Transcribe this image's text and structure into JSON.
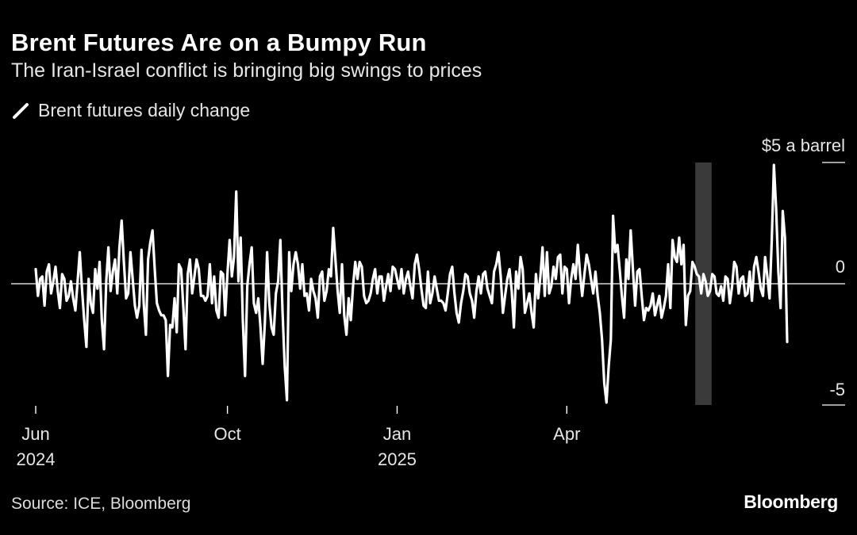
{
  "title": "Brent Futures Are on a Bumpy Run",
  "subtitle": "The Iran-Israel conflict is bringing big swings to prices",
  "source": "Source: ICE, Bloomberg",
  "brand": "Bloomberg",
  "colors": {
    "background": "#000000",
    "line": "#ffffff",
    "highlight": "#3a3a3a",
    "zero_line": "#ffffff"
  },
  "chart_data": {
    "type": "line",
    "title": "Brent Futures Are on a Bumpy Run",
    "subtitle": "The Iran-Israel conflict is bringing big swings to prices",
    "xlabel": "",
    "ylabel": "",
    "ylim": [
      -5,
      5
    ],
    "y_ticks": [
      {
        "value": 5,
        "label": "$5 a barrel"
      },
      {
        "value": 0,
        "label": "0"
      },
      {
        "value": -5,
        "label": "-5"
      }
    ],
    "x_ticks": [
      {
        "month": "Jun",
        "year": "2024",
        "index": 0
      },
      {
        "month": "Oct",
        "year": "",
        "index": 87
      },
      {
        "month": "Jan",
        "year": "2025",
        "index": 164
      },
      {
        "month": "Apr",
        "year": "",
        "index": 241
      }
    ],
    "grid": false,
    "legend_placement": "top-left",
    "highlight_range": [
      300,
      306
    ],
    "series": [
      {
        "name": "Brent futures daily change",
        "values": [
          0.6,
          -0.5,
          0.2,
          0.3,
          -0.9,
          0.5,
          0.8,
          -0.4,
          0.1,
          0.7,
          -0.3,
          -1.0,
          0.4,
          0.2,
          -0.7,
          -0.5,
          0.1,
          -0.6,
          -1.1,
          0.1,
          1.3,
          -0.2,
          -1.5,
          -2.6,
          0.2,
          -0.8,
          -1.2,
          0.6,
          -0.2,
          0.9,
          -1.5,
          -2.7,
          0.1,
          1.5,
          -0.3,
          0.5,
          1.0,
          -0.4,
          1.5,
          2.6,
          0.9,
          -0.6,
          -0.4,
          1.3,
          0.2,
          -0.9,
          -1.4,
          -0.9,
          1.4,
          -0.8,
          -2.1,
          1.0,
          1.7,
          2.2,
          0.6,
          -0.8,
          -1.1,
          -1.3,
          -1.3,
          -1.5,
          -3.8,
          -1.7,
          -1.8,
          -0.6,
          -2.0,
          0.8,
          0.6,
          -1.0,
          -2.7,
          0.4,
          1.0,
          -0.4,
          0.3,
          1.0,
          0.6,
          -0.5,
          -0.5,
          -0.7,
          -0.5,
          0.8,
          -0.8,
          0.3,
          -1.1,
          -1.4,
          0.5,
          0.4,
          -1.3,
          0.4,
          1.8,
          0.3,
          1.1,
          3.8,
          0.1,
          1.9,
          -1.5,
          -3.8,
          -0.1,
          0.8,
          1.5,
          -0.8,
          -1.2,
          -0.6,
          -1.8,
          -3.3,
          -1.6,
          1.3,
          -0.8,
          -1.8,
          -2.1,
          -0.4,
          0.1,
          1.8,
          -1.1,
          -3.4,
          -4.8,
          1.3,
          -0.3,
          0.8,
          1.3,
          0.8,
          -0.2,
          0.8,
          -0.5,
          -0.4,
          -1.1,
          0.2,
          -0.3,
          -0.6,
          -1.4,
          0.3,
          0.5,
          -0.7,
          -0.3,
          0.6,
          0.3,
          2.3,
          1.0,
          -0.3,
          -1.2,
          0.8,
          -1.3,
          -2.1,
          -0.6,
          -1.5,
          -0.1,
          0.9,
          0.2,
          0.9,
          0.7,
          -0.5,
          -0.8,
          -0.7,
          -0.4,
          0.2,
          0.6,
          -0.4,
          0.3,
          0.3,
          -0.7,
          -0.1,
          0.4,
          -0.3,
          0.7,
          0.6,
          0.2,
          -0.2,
          0.6,
          -0.4,
          0.2,
          0.5,
          -0.1,
          -0.6,
          0.8,
          1.2,
          0.6,
          -0.2,
          -0.9,
          -1.0,
          0.5,
          -0.8,
          -0.4,
          0.3,
          -0.2,
          -0.7,
          -0.7,
          -0.8,
          -1.1,
          -0.4,
          0.4,
          0.7,
          -0.4,
          -1.2,
          -1.6,
          -0.8,
          -0.3,
          0.4,
          0.3,
          -0.4,
          -0.7,
          -1.4,
          -0.3,
          0.3,
          -0.4,
          0.4,
          0.5,
          -0.2,
          -0.5,
          -0.8,
          0.5,
          0.8,
          1.3,
          0.3,
          -1.2,
          -0.5,
          0.2,
          0.6,
          -0.3,
          -1.8,
          0.5,
          -0.2,
          1.1,
          0.6,
          -1.2,
          -0.8,
          -0.4,
          -1.2,
          -1.8,
          0.4,
          -0.6,
          0.3,
          1.5,
          -0.5,
          1.3,
          -0.4,
          -0.1,
          0.7,
          0.2,
          1.1,
          1.2,
          -0.4,
          0.7,
          0.6,
          -0.8,
          0.2,
          0.8,
          0.2,
          1.6,
          0.4,
          -0.5,
          0.4,
          1.2,
          0.8,
          0.2,
          -0.4,
          0.5,
          -0.5,
          -1.2,
          -2.3,
          -4.1,
          -4.9,
          -3.4,
          -2.3,
          2.8,
          1.3,
          1.6,
          0.6,
          -0.5,
          -1.4,
          1.0,
          0.2,
          2.2,
          0.6,
          -0.9,
          0.5,
          0.6,
          -0.5,
          -1.5,
          -1.0,
          -1.1,
          -0.9,
          -0.4,
          -1.3,
          -0.9,
          -0.5,
          -1.4,
          -1.0,
          -0.5,
          0.8,
          -1.0,
          1.8,
          1.1,
          0.9,
          1.9,
          0.8,
          1.6,
          -1.7,
          -0.5,
          -0.3,
          0.9,
          0.7,
          0.4,
          0.3,
          -0.4,
          0.4,
          0.1,
          -0.5,
          -0.3,
          0.4,
          0.3,
          -0.4,
          -0.5,
          -0.1,
          -0.7,
          0.3,
          0.2,
          -0.8,
          -0.1,
          0.9,
          0.7,
          -0.4,
          0.2,
          0.3,
          -0.5,
          -0.4,
          0.5,
          -0.7,
          0.7,
          1.1,
          0.5,
          -0.2,
          -0.5,
          1.1,
          0.3,
          -0.6,
          1.8,
          4.9,
          3.1,
          0.5,
          -1.0,
          3.0,
          1.9,
          -2.4
        ]
      }
    ]
  }
}
